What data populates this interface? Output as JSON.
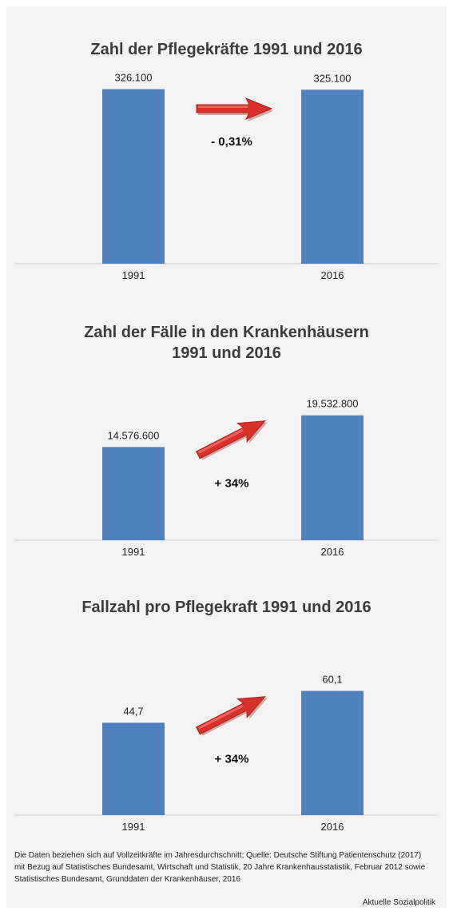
{
  "chart_data": [
    {
      "type": "bar",
      "title": "Zahl der Pflegekräfte 1991 und 2016",
      "categories": [
        "1991",
        "2016"
      ],
      "values": [
        326100,
        325100
      ],
      "value_labels": [
        "326.100",
        "325.100"
      ],
      "change_label": "- 0,31%",
      "arrow": "flat",
      "ylim": [
        0,
        427000
      ],
      "color": "#4e81bd",
      "arrow_color": "#d9302a"
    },
    {
      "type": "bar",
      "title": "Zahl der Fälle in den Krankenhäusern 1991 und 2016",
      "title_lines": [
        "Zahl der Fälle in den Krankenhäusern",
        "1991 und 2016"
      ],
      "categories": [
        "1991",
        "2016"
      ],
      "values": [
        14576600,
        19532800
      ],
      "value_labels": [
        "14.576.600",
        "19.532.800"
      ],
      "change_label": "+ 34%",
      "arrow": "up",
      "ylim": [
        0,
        30000000
      ],
      "color": "#4e81bd",
      "arrow_color": "#d9302a"
    },
    {
      "type": "bar",
      "title": "Fallzahl pro Pflegekraft 1991 und 2016",
      "categories": [
        "1991",
        "2016"
      ],
      "values": [
        44.7,
        60.1
      ],
      "value_labels": [
        "44,7",
        "60,1"
      ],
      "change_label": "+ 34%",
      "arrow": "up",
      "ylim": [
        0,
        99
      ],
      "color": "#4e81bd",
      "arrow_color": "#d9302a"
    }
  ],
  "footnote": "Die Daten beziehen sich auf Vollzeitkräfte im Jahresdurchschnitt; Quelle: Deutsche Stiftung Patientenschutz (2017) mit Bezug auf Statistisches Bundesamt, Wirtschaft und Statistik, 20 Jahre Krankenhausstatistik, Februar 2012 sowie Statistisches Bundesamt, Grunddaten der Krankenhäuser, 2016",
  "source": "Aktuelle Sozialpolitik"
}
